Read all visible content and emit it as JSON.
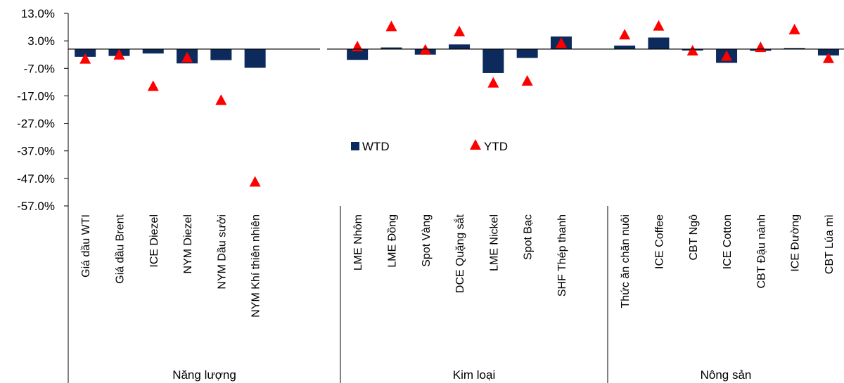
{
  "chart_data": {
    "type": "bar",
    "title": "",
    "xlabel": "",
    "ylabel": "",
    "ylim": [
      -57,
      13
    ],
    "yticks": [
      "13.0%",
      "3.0%",
      "-7.0%",
      "-17.0%",
      "-27.0%",
      "-37.0%",
      "-47.0%",
      "-57.0%"
    ],
    "ytick_values": [
      13,
      3,
      -7,
      -17,
      -27,
      -37,
      -47,
      -57
    ],
    "grid": false,
    "legend_position": "center",
    "colors": {
      "WTD": "#0d2a5c",
      "YTD": "#ff0000"
    },
    "groups": [
      {
        "label": "Năng lượng",
        "categories": [
          "Giá dầu WTI",
          "Giá dầu Brent",
          "ICE Diezel",
          "NYM Diezel",
          "NYM Dầu sưởi",
          "NYM Khí thiên nhiên"
        ]
      },
      {
        "label": "Kim loại",
        "categories": [
          "LME Nhôm",
          "LME Đồng",
          "Spot Vàng",
          "DCE Quặng sắt",
          "LME Nickel",
          "Spot Bạc",
          "SHF Thép thanh"
        ]
      },
      {
        "label": "Nông sản",
        "categories": [
          "Thức ăn chăn nuôi",
          "ICE Coffee",
          "CBT Ngô",
          "ICE Cotton",
          "CBT Đậu nành",
          "ICE Đường",
          "CBT Lúa mì"
        ]
      }
    ],
    "series": [
      {
        "name": "WTD",
        "type": "bar",
        "values": [
          -2.8,
          -2.5,
          -1.6,
          -5.2,
          -4.0,
          -6.8,
          -3.9,
          0.6,
          -2.0,
          1.7,
          -8.7,
          -3.2,
          4.6,
          1.3,
          4.2,
          -0.5,
          -5.0,
          -0.6,
          0.4,
          -2.3
        ]
      },
      {
        "name": "YTD",
        "type": "marker",
        "values": [
          -3.5,
          -2.0,
          -13.4,
          -3.0,
          -18.5,
          -48.2,
          1.0,
          8.3,
          -0.2,
          6.5,
          -12.2,
          -11.5,
          2.2,
          5.3,
          8.5,
          -0.5,
          -2.5,
          0.7,
          7.2,
          -3.3
        ]
      }
    ]
  }
}
